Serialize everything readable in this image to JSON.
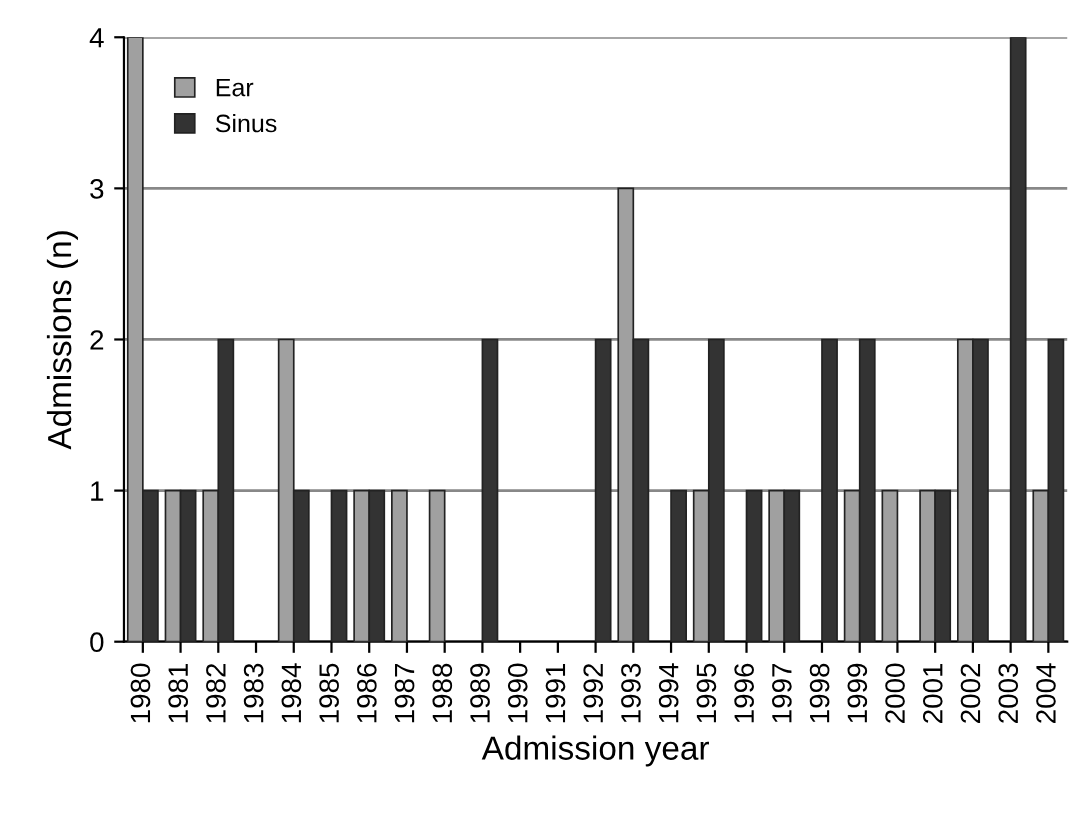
{
  "chart_data": {
    "type": "bar",
    "xlabel": "Admission year",
    "ylabel": "Admissions (n)",
    "categories": [
      "1980",
      "1981",
      "1982",
      "1983",
      "1984",
      "1985",
      "1986",
      "1987",
      "1988",
      "1989",
      "1990",
      "1991",
      "1992",
      "1993",
      "1994",
      "1995",
      "1996",
      "1997",
      "1998",
      "1999",
      "2000",
      "2001",
      "2002",
      "2003",
      "2004"
    ],
    "series": [
      {
        "name": "Ear",
        "color": "#a0a0a0",
        "values": [
          4,
          1,
          1,
          0,
          2,
          0,
          1,
          1,
          1,
          0,
          0,
          0,
          0,
          3,
          0,
          1,
          0,
          1,
          0,
          1,
          1,
          1,
          2,
          0,
          1
        ]
      },
      {
        "name": "Sinus",
        "color": "#333333",
        "values": [
          1,
          1,
          2,
          0,
          1,
          1,
          1,
          0,
          0,
          2,
          0,
          0,
          2,
          2,
          1,
          2,
          1,
          1,
          2,
          2,
          0,
          1,
          2,
          4,
          2
        ]
      }
    ],
    "ylim": [
      0,
      4
    ],
    "yticks": [
      0,
      1,
      2,
      3,
      4
    ],
    "grid": "y",
    "legend": "top left"
  }
}
